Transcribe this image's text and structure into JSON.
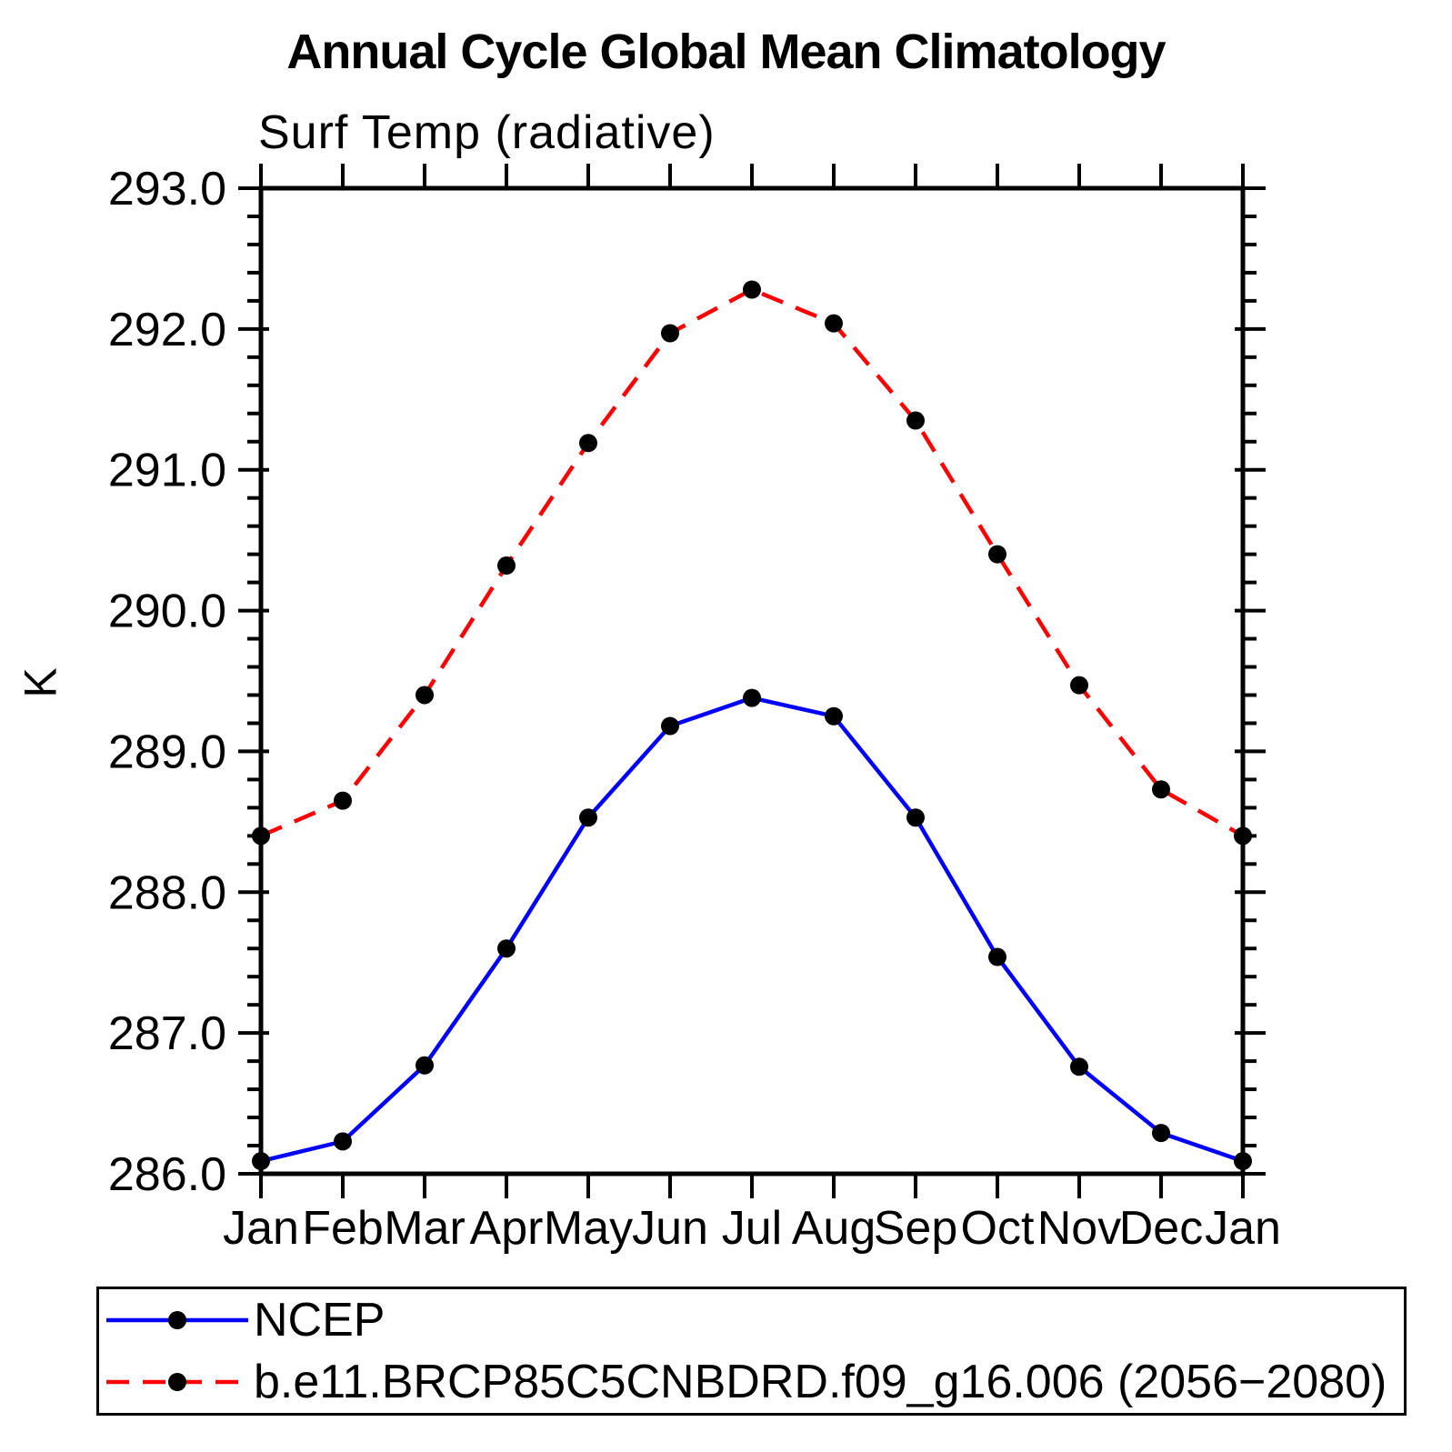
{
  "page": {
    "background": "#ffffff"
  },
  "chart_data": {
    "type": "line",
    "title": "Annual Cycle Global Mean Climatology",
    "subtitle": "Surf Temp (radiative)",
    "ylabel": "K",
    "xlabel": "",
    "categories": [
      "Jan",
      "Feb",
      "Mar",
      "Apr",
      "May",
      "Jun",
      "Jul",
      "Aug",
      "Sep",
      "Oct",
      "Nov",
      "Dec",
      "Jan"
    ],
    "ylim": [
      286.0,
      293.0
    ],
    "y_major_step": 1.0,
    "y_minor_step": 0.2,
    "y_tick_labels": [
      "286.0",
      "287.0",
      "288.0",
      "289.0",
      "290.0",
      "291.0",
      "292.0",
      "293.0"
    ],
    "grid": false,
    "legend_position": "bottom-left",
    "series": [
      {
        "name": "NCEP",
        "color": "#0000ff",
        "line_style": "solid",
        "marker": "circle",
        "marker_color": "#000000",
        "values": [
          286.09,
          286.23,
          286.77,
          287.6,
          288.53,
          289.18,
          289.38,
          289.25,
          288.53,
          287.54,
          286.76,
          286.29,
          286.09
        ]
      },
      {
        "name": "b.e11.BRCP85C5CNBDRD.f09_g16.006 (2056−2080)",
        "color": "#ff0000",
        "line_style": "dashed",
        "marker": "circle",
        "marker_color": "#000000",
        "values": [
          288.4,
          288.65,
          289.4,
          290.32,
          291.19,
          291.97,
          292.28,
          292.04,
          291.35,
          290.4,
          289.47,
          288.73,
          288.4
        ]
      }
    ]
  }
}
